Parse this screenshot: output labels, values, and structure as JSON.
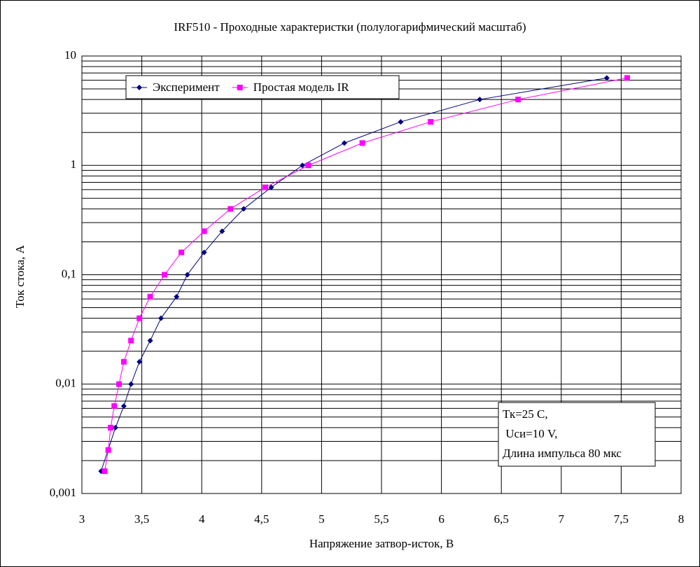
{
  "chart_data": {
    "type": "scatter",
    "title": "IRF510 - Проходные характеристки (полулогарифмический масштаб)",
    "x_label": "Напряжение затвор-исток, В",
    "y_label": "Ток стока, А",
    "y_log": true,
    "grid": true,
    "xlim": [
      3,
      8
    ],
    "ylim": [
      0.001,
      10
    ],
    "xticks": [
      3,
      {
        "value": 3.5,
        "label": "3,5"
      },
      4,
      {
        "value": 4.5,
        "label": "4,5"
      },
      5,
      {
        "value": 5.5,
        "label": "5,5"
      },
      6,
      {
        "value": 6.5,
        "label": "6,5"
      },
      7,
      {
        "value": 7.5,
        "label": "7,5"
      },
      8
    ],
    "yticks": [
      {
        "value": 0.001,
        "label": "0,001"
      },
      {
        "value": 0.01,
        "label": "0,01"
      },
      {
        "value": 0.1,
        "label": "0,1"
      },
      1,
      10
    ],
    "series": [
      {
        "name": "Эксперимент",
        "color": "#000080",
        "marker": "diamond",
        "x": [
          3.16,
          3.28,
          3.35,
          3.41,
          3.48,
          3.57,
          3.66,
          3.79,
          3.88,
          4.02,
          4.17,
          4.35,
          4.58,
          4.84,
          5.19,
          5.66,
          6.32,
          7.38
        ],
        "values": [
          0.0016,
          0.004,
          0.0063,
          0.01,
          0.016,
          0.025,
          0.04,
          0.063,
          0.1,
          0.16,
          0.25,
          0.4,
          0.63,
          1,
          1.6,
          2.5,
          4,
          6.3
        ]
      },
      {
        "name": "Простая модель IR",
        "color": "#ff00ff",
        "marker": "square",
        "x": [
          3.19,
          3.22,
          3.24,
          3.27,
          3.31,
          3.35,
          3.41,
          3.48,
          3.57,
          3.69,
          3.83,
          4.02,
          4.24,
          4.53,
          4.89,
          5.34,
          5.91,
          6.64,
          7.55
        ],
        "values": [
          0.0016,
          0.0025,
          0.004,
          0.0063,
          0.01,
          0.016,
          0.025,
          0.04,
          0.063,
          0.1,
          0.16,
          0.25,
          0.4,
          0.63,
          1,
          1.6,
          2.5,
          4,
          6.3
        ]
      }
    ],
    "annotation": [
      "Тк=25 С,",
      " Uси=10 V,",
      "Длина импульса 80 мкс"
    ]
  }
}
